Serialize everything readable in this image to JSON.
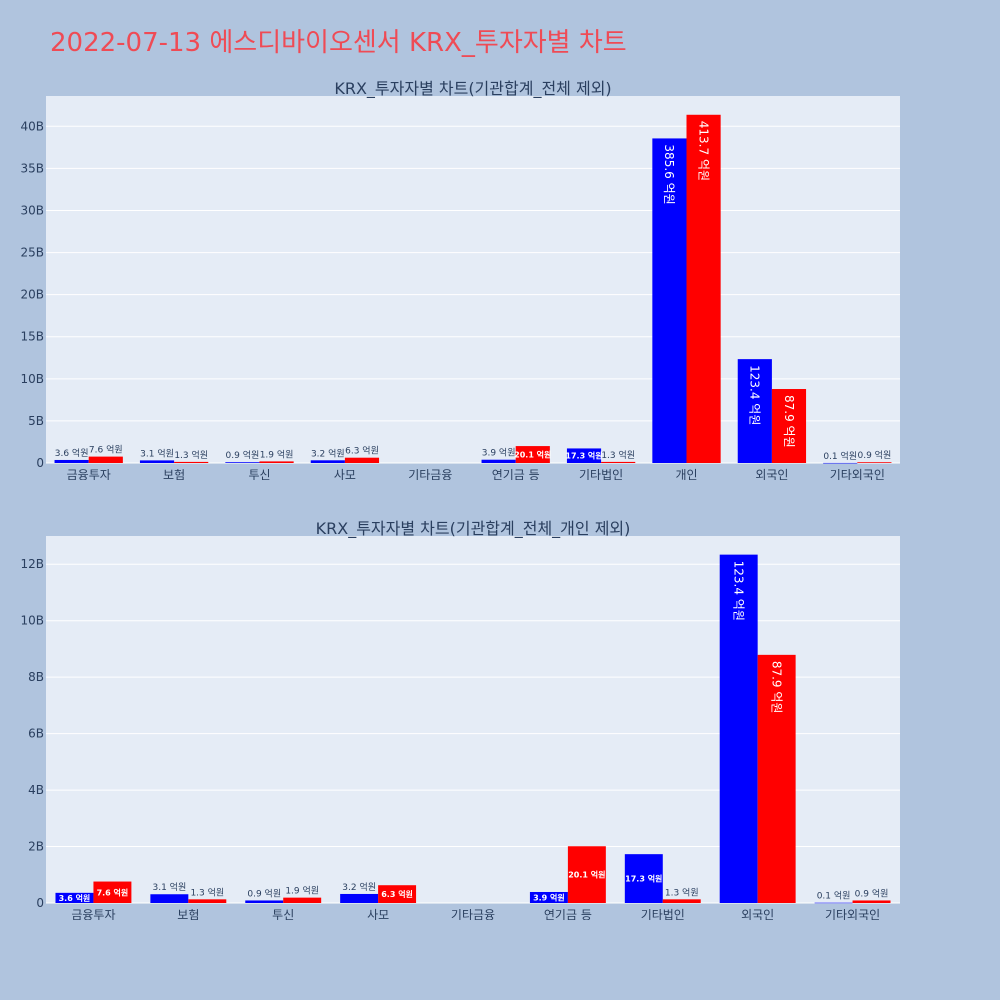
{
  "page": {
    "title": "2022-07-13 에스디바이오센서 KRX_투자자별 차트"
  },
  "colors": {
    "background": "#b0c4de",
    "plot_bg": "#e5ecf6",
    "title": "#ef4b55",
    "buy": "#0000ff",
    "sell": "#ff0000",
    "axis_text": "#2a3f5f"
  },
  "chart_data": [
    {
      "type": "bar",
      "title": "KRX_투자자별 차트(기관합계_전체 제외)",
      "categories": [
        "금융투자",
        "보험",
        "투신",
        "사모",
        "기타금융",
        "연기금 등",
        "기타법인",
        "개인",
        "외국인",
        "기타외국인"
      ],
      "series": [
        {
          "color": "#0000ff",
          "values": [
            0.36,
            0.31,
            0.09,
            0.32,
            0,
            0.39,
            1.73,
            38.56,
            12.34,
            0.01
          ],
          "labels": [
            "3.6 억원",
            "3.1 억원",
            "0.9 억원",
            "3.2 억원",
            "",
            "3.9 억원",
            "17.3 억원",
            "385.6 억원",
            "123.4 억원",
            "0.1 억원"
          ]
        },
        {
          "color": "#ff0000",
          "values": [
            0.76,
            0.13,
            0.19,
            0.63,
            0,
            2.01,
            0.13,
            41.37,
            8.79,
            0.09
          ],
          "labels": [
            "7.6 억원",
            "1.3 억원",
            "1.9 억원",
            "6.3 억원",
            "",
            "20.1 억원",
            "1.3 억원",
            "413.7 억원",
            "87.9 억원",
            "0.9 억원"
          ]
        }
      ],
      "yticks": [
        0,
        5,
        10,
        15,
        20,
        25,
        30,
        35,
        40
      ],
      "ytick_labels": [
        "0",
        "5B",
        "10B",
        "15B",
        "20B",
        "25B",
        "30B",
        "35B",
        "40B"
      ],
      "ylim": [
        0,
        43.6
      ],
      "grid": true,
      "legend": "none"
    },
    {
      "type": "bar",
      "title": "KRX_투자자별 차트(기관합계_전체_개인 제외)",
      "categories": [
        "금융투자",
        "보험",
        "투신",
        "사모",
        "기타금융",
        "연기금 등",
        "기타법인",
        "외국인",
        "기타외국인"
      ],
      "series": [
        {
          "color": "#0000ff",
          "values": [
            0.36,
            0.31,
            0.09,
            0.32,
            0,
            0.39,
            1.73,
            12.34,
            0.01
          ],
          "labels": [
            "3.6 억원",
            "3.1 억원",
            "0.9 억원",
            "3.2 억원",
            "",
            "3.9 억원",
            "17.3 억원",
            "123.4 억원",
            "0.1 억원"
          ]
        },
        {
          "color": "#ff0000",
          "values": [
            0.76,
            0.13,
            0.19,
            0.63,
            0,
            2.01,
            0.13,
            8.79,
            0.09
          ],
          "labels": [
            "7.6 억원",
            "1.3 억원",
            "1.9 억원",
            "6.3 억원",
            "",
            "20.1 억원",
            "1.3 억원",
            "87.9 억원",
            "0.9 억원"
          ]
        }
      ],
      "yticks": [
        0,
        2,
        4,
        6,
        8,
        10,
        12
      ],
      "ytick_labels": [
        "0",
        "2B",
        "4B",
        "6B",
        "8B",
        "10B",
        "12B"
      ],
      "ylim": [
        0,
        13.0
      ],
      "grid": true,
      "legend": "none"
    }
  ]
}
